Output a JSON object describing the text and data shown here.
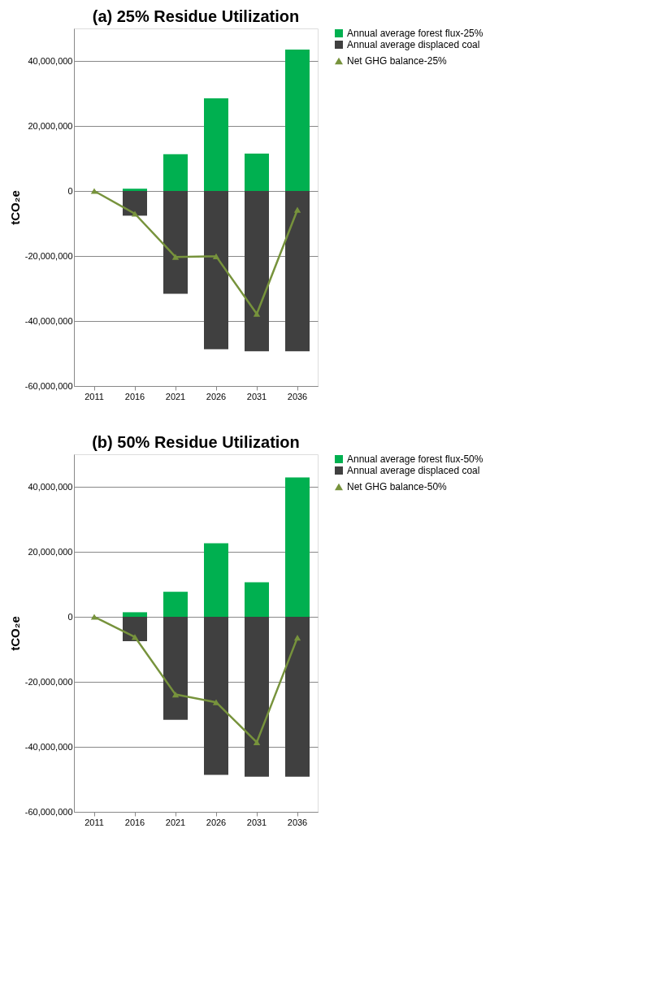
{
  "chart_data": [
    {
      "type": "bar",
      "title": "(a) 25% Residue Utilization",
      "ylabel": "tCO₂e",
      "categories": [
        "2011",
        "2016",
        "2021",
        "2026",
        "2031",
        "2036"
      ],
      "stacked": true,
      "series": [
        {
          "name": "Annual average forest flux-25%",
          "color": "#00b050",
          "values": [
            0,
            700000,
            11300000,
            28500000,
            11500000,
            43500000
          ]
        },
        {
          "name": "Annual average displaced coal",
          "color": "#404040",
          "values": [
            0,
            -7600000,
            -31600000,
            -48700000,
            -49300000,
            -49300000
          ]
        },
        {
          "name": "Net GHG balance-25%",
          "type": "line",
          "color": "#77933c",
          "marker": "triangle",
          "values": [
            0,
            -7000000,
            -20300000,
            -20100000,
            -37800000,
            -5800000
          ]
        }
      ],
      "ylim": [
        -60000000,
        50000000
      ],
      "yticks": [
        {
          "value": -60000000,
          "label": "-60,000,000"
        },
        {
          "value": -40000000,
          "label": "-40,000,000"
        },
        {
          "value": -20000000,
          "label": "-20,000,000"
        },
        0,
        {
          "value": 20000000,
          "label": "20,000,000"
        },
        {
          "value": 40000000,
          "label": "40,000,000"
        }
      ],
      "grid": "y",
      "legend": "right"
    },
    {
      "type": "bar",
      "title": "(b) 50% Residue Utilization",
      "ylabel": "tCO₂e",
      "categories": [
        "2011",
        "2016",
        "2021",
        "2026",
        "2031",
        "2036"
      ],
      "stacked": true,
      "series": [
        {
          "name": "Annual average forest flux-50%",
          "color": "#00b050",
          "values": [
            0,
            1400000,
            7700000,
            22600000,
            10600000,
            42900000
          ]
        },
        {
          "name": "Annual average displaced coal",
          "color": "#404040",
          "values": [
            0,
            -7500000,
            -31700000,
            -48600000,
            -49200000,
            -49200000
          ]
        },
        {
          "name": "Net GHG balance-50%",
          "type": "line",
          "color": "#77933c",
          "marker": "triangle",
          "values": [
            0,
            -6200000,
            -23900000,
            -26300000,
            -38600000,
            -6400000
          ]
        }
      ],
      "ylim": [
        -60000000,
        50000000
      ],
      "yticks": [
        {
          "value": -60000000,
          "label": "-60,000,000"
        },
        {
          "value": -40000000,
          "label": "-40,000,000"
        },
        {
          "value": -20000000,
          "label": "-20,000,000"
        },
        0,
        {
          "value": 20000000,
          "label": "20,000,000"
        },
        {
          "value": 40000000,
          "label": "40,000,000"
        }
      ],
      "grid": "y",
      "legend": "right"
    }
  ]
}
